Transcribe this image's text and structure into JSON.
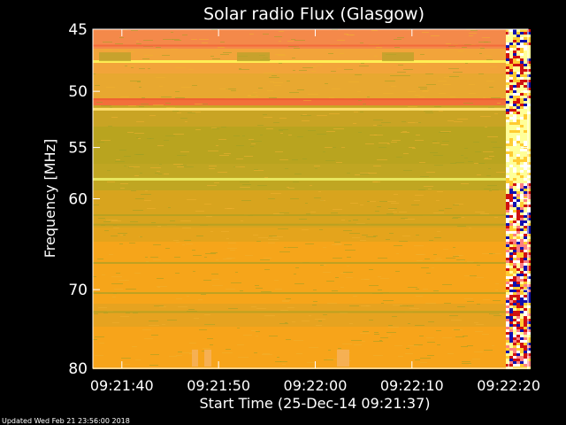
{
  "chart_data": {
    "type": "heatmap",
    "title": "Solar radio Flux (Glasgow)",
    "ylabel": "Frequency [MHz]",
    "xlabel": "Start Time (25-Dec-14 09:21:37)",
    "footer": "Updated Wed Feb 21 23:56:00 2018",
    "y_scale": "log",
    "ylim": [
      45,
      80
    ],
    "y_ticks": [
      45,
      50,
      55,
      60,
      70,
      80
    ],
    "x_ticks": [
      "09:21:40",
      "09:21:50",
      "09:22:00",
      "09:22:10",
      "09:22:20"
    ],
    "xlim_seconds_from_start": [
      0,
      45
    ],
    "x_tick_seconds_from_start": [
      3,
      13,
      23,
      33,
      43
    ],
    "bands": [
      {
        "freq": 47.5,
        "color": "#ffee55"
      },
      {
        "freq": 51.5,
        "color": "#ffe070"
      },
      {
        "freq": 58.0,
        "color": "#e8e860"
      }
    ],
    "colors": {
      "background": "#000000",
      "base": "#f7a21a",
      "green_band": "#b8a21e",
      "orange": "#f9a51a",
      "red": "#f05a28",
      "noise_colors": [
        "#ffffff",
        "#ffff99",
        "#1010b0",
        "#d01010",
        "#ff8080",
        "#ffcc33"
      ]
    }
  }
}
